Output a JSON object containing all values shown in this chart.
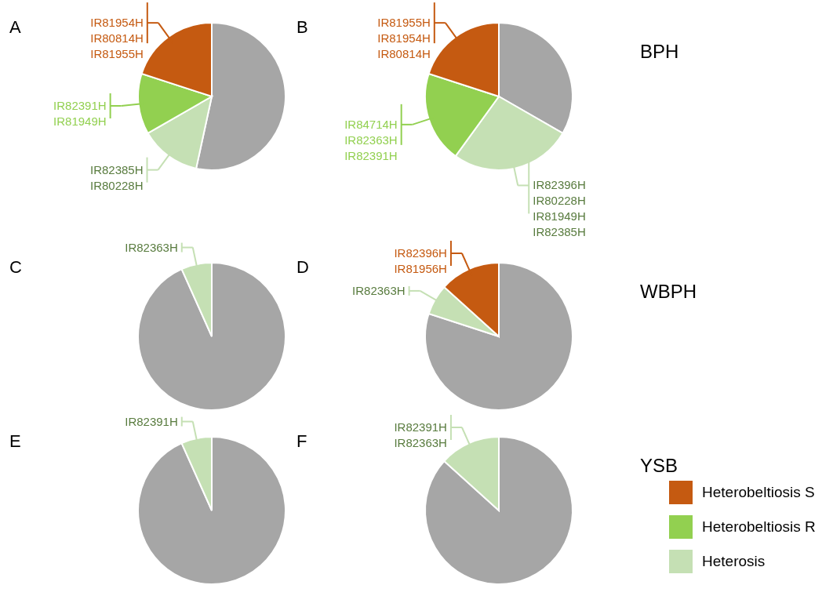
{
  "chart_data": [
    {
      "type": "pie",
      "title": "A",
      "values": [
        53.4,
        13.3,
        13.3,
        20
      ],
      "colors": [
        "#a6a6a6",
        "#c5e0b4",
        "#92d050",
        "#c55a11"
      ],
      "value_labels": [
        null,
        "IR82385H\nIR80228H",
        "IR82391H\nIR81949H",
        "IR81954H\nIR80814H\nIR81955H"
      ]
    },
    {
      "type": "pie",
      "title": "B",
      "values": [
        33.3,
        26.7,
        20,
        20
      ],
      "colors": [
        "#a6a6a6",
        "#c5e0b4",
        "#92d050",
        "#c55a11"
      ],
      "value_labels": [
        null,
        "IR82396H\nIR80228H\nIR81949H\nIR82385H",
        "IR84714H\nIR82363H\nIR82391H",
        "IR81955H\nIR81954H\nIR80814H"
      ],
      "annotations": [
        "BPH"
      ]
    },
    {
      "type": "pie",
      "title": "C",
      "values": [
        93.3,
        6.7
      ],
      "colors": [
        "#a6a6a6",
        "#c5e0b4"
      ],
      "value_labels": [
        null,
        "IR82363H"
      ]
    },
    {
      "type": "pie",
      "title": "D",
      "values": [
        80,
        6.7,
        13.3
      ],
      "colors": [
        "#a6a6a6",
        "#c5e0b4",
        "#c55a11"
      ],
      "value_labels": [
        null,
        "IR82363H",
        "IR82396H\nIR81956H"
      ],
      "annotations": [
        "WBPH"
      ]
    },
    {
      "type": "pie",
      "title": "E",
      "values": [
        93.3,
        6.7
      ],
      "colors": [
        "#a6a6a6",
        "#c5e0b4"
      ],
      "value_labels": [
        null,
        "IR82391H"
      ]
    },
    {
      "type": "pie",
      "title": "F",
      "categories": [
        null,
        "Heterosis",
        "Heterobeltiosis R",
        "Heterobeltiosis S"
      ],
      "values": [
        86.7,
        13.3,
        0,
        0
      ],
      "colors": [
        "#a6a6a6",
        "#c5e0b4",
        "#92d050",
        "#c55a11"
      ],
      "value_labels": [
        null,
        "IR82391H\nIR82363H",
        null,
        null
      ],
      "annotations": [
        "YSB"
      ],
      "legend": "bottom right"
    }
  ]
}
